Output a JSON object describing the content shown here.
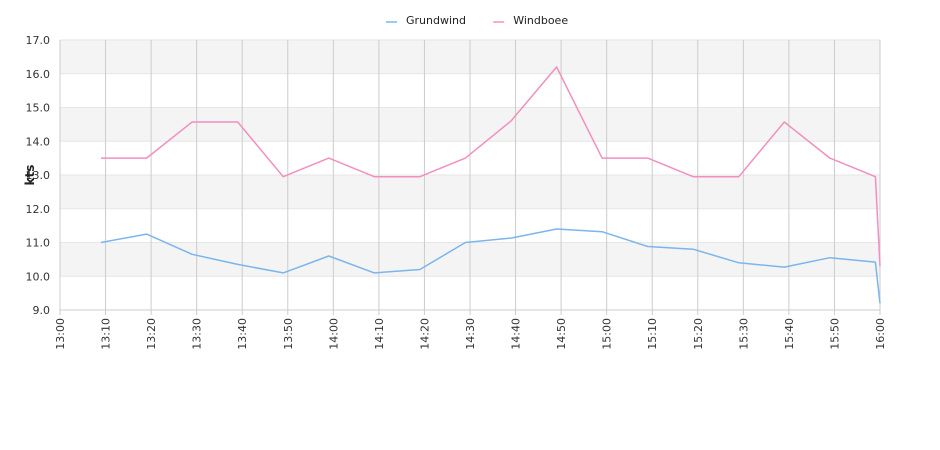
{
  "chart_data": {
    "type": "line",
    "ylabel": "kts",
    "ylim": [
      9.0,
      17.0
    ],
    "y_ticks": [
      "9.0",
      "10.0",
      "11.0",
      "12.0",
      "13.0",
      "14.0",
      "15.0",
      "16.0",
      "17.0"
    ],
    "x_ticks": [
      "13:00",
      "13:10",
      "13:20",
      "13:30",
      "13:40",
      "13:50",
      "14:00",
      "14:10",
      "14:20",
      "14:30",
      "14:40",
      "14:50",
      "15:00",
      "15:10",
      "15:20",
      "15:30",
      "15:40",
      "15:50",
      "16:00"
    ],
    "x": [
      "13:09",
      "13:19",
      "13:29",
      "13:39",
      "13:49",
      "13:59",
      "14:09",
      "14:19",
      "14:29",
      "14:39",
      "14:49",
      "14:59",
      "15:09",
      "15:19",
      "15:29",
      "15:39",
      "15:49",
      "15:59",
      "16:00"
    ],
    "series": [
      {
        "name": "Grundwind",
        "color": "#7cb5ec",
        "values": [
          11.0,
          11.25,
          10.65,
          10.35,
          10.1,
          10.6,
          10.1,
          10.2,
          11.0,
          11.13,
          11.4,
          11.32,
          10.88,
          10.8,
          10.4,
          10.27,
          10.55,
          10.42,
          9.2
        ]
      },
      {
        "name": "Windboee",
        "color": "#f28fbf",
        "values": [
          13.5,
          13.5,
          14.57,
          14.57,
          12.95,
          13.5,
          12.95,
          12.95,
          13.5,
          14.6,
          16.2,
          13.5,
          13.5,
          12.95,
          12.95,
          14.57,
          13.5,
          12.95,
          10.3
        ]
      }
    ],
    "legend_position": "top-center",
    "grid": true,
    "alternate_bands": true
  }
}
